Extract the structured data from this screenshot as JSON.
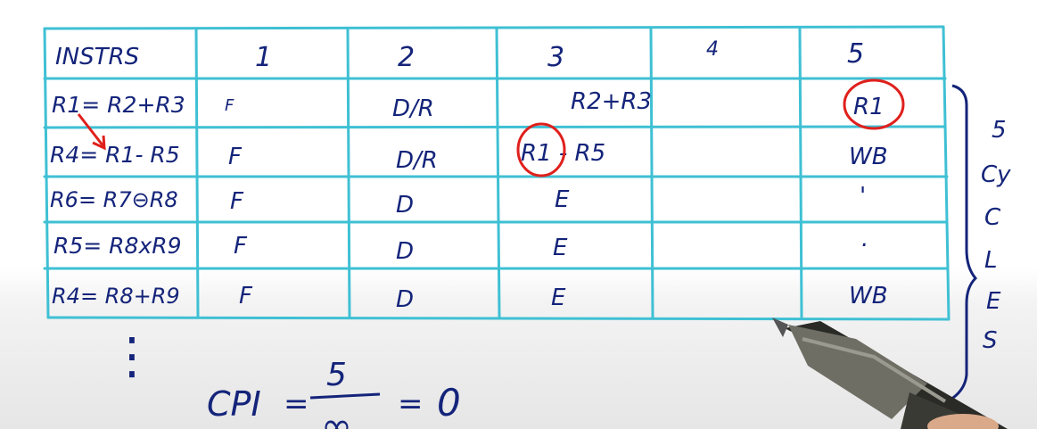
{
  "table": {
    "header": [
      "INSTRS",
      "1",
      "2",
      "3",
      "4",
      "5"
    ],
    "rows": [
      {
        "instr": "R1= R2+R3",
        "c1": "F",
        "c2": "D/R",
        "c3": "R2+R3",
        "c4": "",
        "c5": "R1"
      },
      {
        "instr": "R4= R1- R5",
        "c1": "F",
        "c2": "D/R",
        "c3": "R1 - R5",
        "c4": "",
        "c5": "WB"
      },
      {
        "instr": "R6= R7⊖R8",
        "c1": "F",
        "c2": "D",
        "c3": "E",
        "c4": "",
        "c5": "'"
      },
      {
        "instr": "R5= R8xR9",
        "c1": "F",
        "c2": "D",
        "c3": "E",
        "c4": "",
        "c5": "."
      },
      {
        "instr": "R4= R8+R9",
        "c1": "F",
        "c2": "D",
        "c3": "E",
        "c4": "",
        "c5": "WB"
      }
    ]
  },
  "continuation": "⋮",
  "brace_label": [
    "5",
    "Cy",
    "C",
    "L",
    "E",
    "S"
  ],
  "formula": {
    "lhs": "CPI",
    "numerator": "5",
    "denominator": "∞",
    "result": "0"
  },
  "colors": {
    "grid": "#3fc0d4",
    "ink": "#14247a",
    "highlight": "#e0201c"
  }
}
